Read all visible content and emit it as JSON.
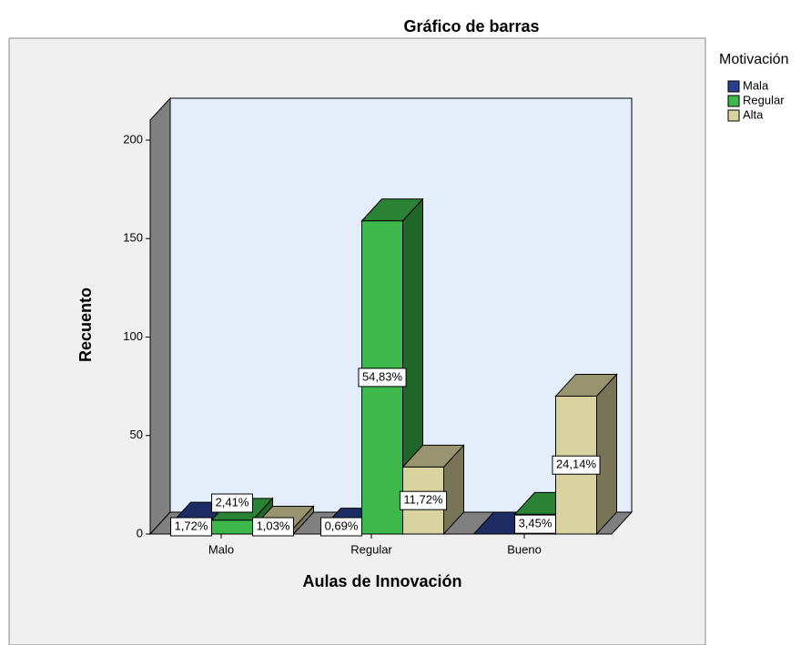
{
  "chart_data": {
    "type": "bar3d",
    "title": "Gráfico de barras",
    "x_label": "Aulas de Innovación",
    "y_label": "Recuento",
    "legend_title": "Motivación",
    "categories": [
      "Malo",
      "Regular",
      "Bueno"
    ],
    "series": [
      {
        "name": "Mala",
        "color": "#2b3f8f",
        "values": [
          5,
          2,
          0
        ],
        "value_labels": [
          "1,72%",
          "0,69%",
          null
        ]
      },
      {
        "name": "Regular",
        "color": "#3cb94a",
        "values": [
          7,
          159,
          10
        ],
        "value_labels": [
          "2,41%",
          "54,83%",
          "3,45%"
        ]
      },
      {
        "name": "Alta",
        "color": "#d9d3a0",
        "values": [
          3,
          34,
          70
        ],
        "value_labels": [
          "1,03%",
          "11,72%",
          "24,14%"
        ]
      }
    ],
    "ylim": [
      0,
      200
    ],
    "yticks": [
      0,
      50,
      100,
      150,
      200
    ]
  }
}
